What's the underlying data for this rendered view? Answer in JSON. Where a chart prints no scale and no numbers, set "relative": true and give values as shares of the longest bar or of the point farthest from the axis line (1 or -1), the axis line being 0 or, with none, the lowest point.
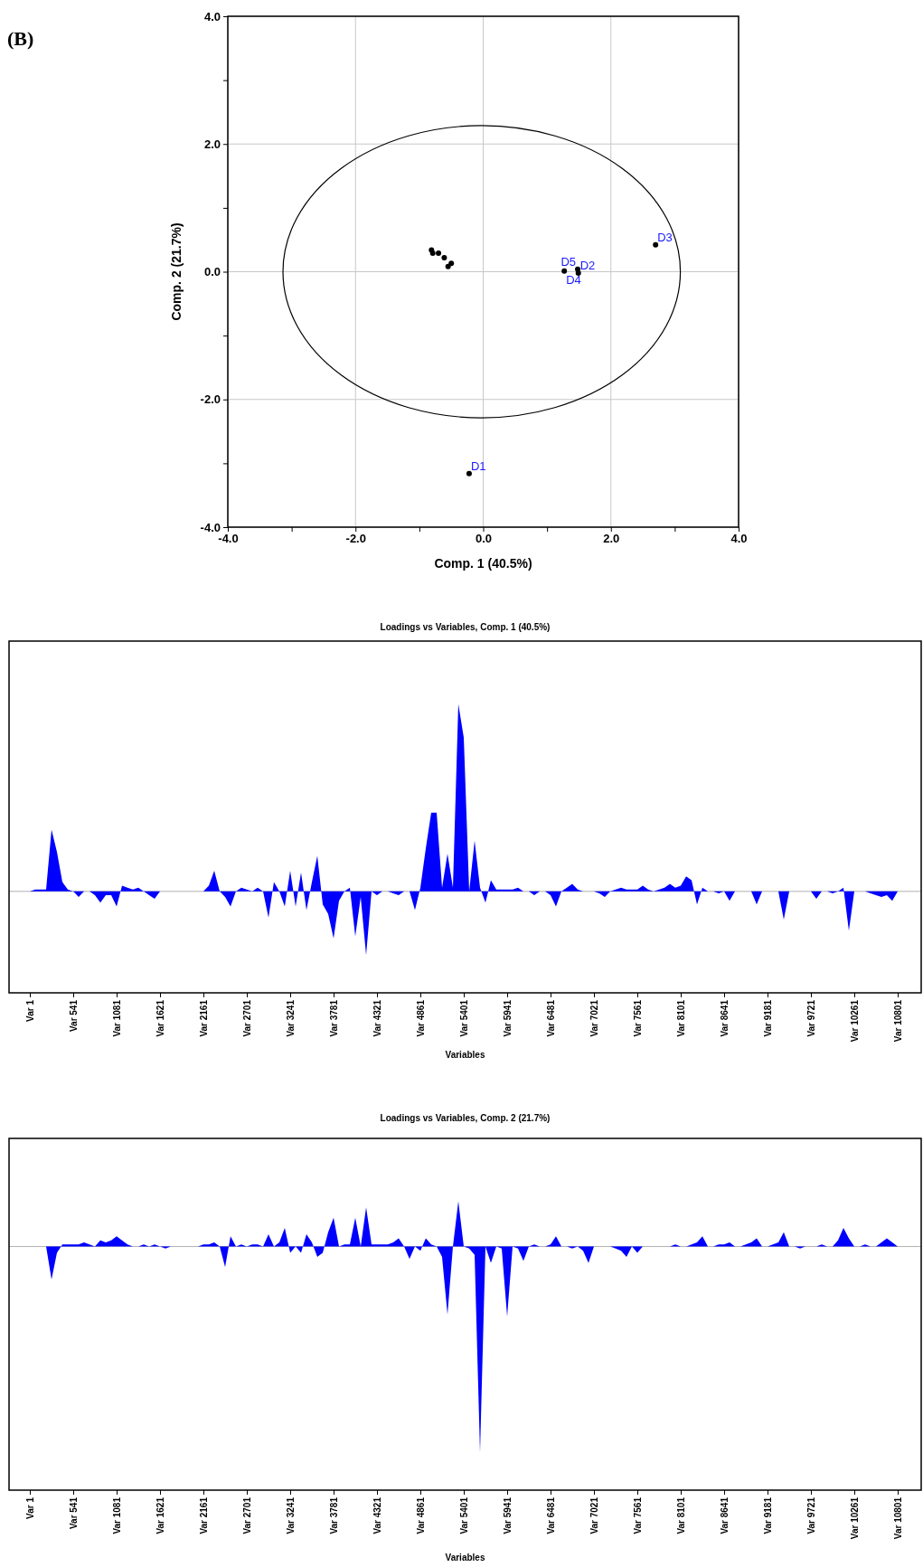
{
  "chart_data": [
    {
      "type": "scatter",
      "xlabel": "Comp. 1 (40.5%)",
      "ylabel": "Comp. 2 (21.7%)",
      "xlim": [
        -4,
        4
      ],
      "ylim": [
        -4,
        4
      ],
      "xticks": [
        {
          "value": -4,
          "label": "-4.0"
        },
        {
          "value": -3,
          "label": null
        },
        {
          "value": -2,
          "label": "-2.0"
        },
        {
          "value": -1,
          "label": null
        },
        {
          "value": 0,
          "label": "0.0"
        },
        {
          "value": 1,
          "label": null
        },
        {
          "value": 2,
          "label": "2.0"
        },
        {
          "value": 3,
          "label": null
        },
        {
          "value": 4,
          "label": "4.0"
        }
      ],
      "yticks": [
        {
          "value": -4,
          "label": "-4.0"
        },
        {
          "value": -3,
          "label": null
        },
        {
          "value": -2,
          "label": "-2.0"
        },
        {
          "value": -1,
          "label": null
        },
        {
          "value": 0,
          "label": "0.0"
        },
        {
          "value": 1,
          "label": null
        },
        {
          "value": 2,
          "label": "2.0"
        },
        {
          "value": 3,
          "label": null
        },
        {
          "value": 4,
          "label": "4.0"
        }
      ],
      "grid": true,
      "marker": "circle",
      "series": [
        {
          "color": "#000000",
          "x": [
            -0.81,
            -0.79,
            -0.7,
            -0.61,
            -0.55,
            -0.5
          ],
          "values": [
            0.34,
            0.29,
            0.29,
            0.22,
            0.08,
            0.13
          ]
        },
        {
          "color": "#000000",
          "x": [
            -0.22,
            1.49,
            2.7,
            1.27,
            1.48
          ],
          "values": [
            -3.16,
            -0.02,
            0.42,
            0.01,
            0.04
          ]
        }
      ],
      "annotations": [
        "(B)",
        {
          "text": "D1",
          "x": -0.22,
          "y": -3.16
        },
        {
          "text": "D2",
          "x": 1.49,
          "y": -0.02
        },
        {
          "text": "D3",
          "x": 2.7,
          "y": 0.42
        },
        {
          "text": "D4",
          "x": 1.27,
          "y": 0.01
        },
        {
          "text": "D5",
          "x": 1.48,
          "y": 0.04
        }
      ]
    },
    {
      "type": "area",
      "title": "Loadings vs Variables, Comp. 1 (40.5%)",
      "xlabel": "Variables",
      "relative": true,
      "categories": [
        "Var 1",
        null,
        null,
        null,
        null,
        null,
        null,
        null,
        "Var 541",
        null,
        null,
        null,
        null,
        null,
        null,
        null,
        "Var 1081",
        null,
        null,
        null,
        null,
        null,
        null,
        null,
        "Var 1621",
        null,
        null,
        null,
        null,
        null,
        null,
        null,
        "Var 2161",
        null,
        null,
        null,
        null,
        null,
        null,
        null,
        "Var 2701",
        null,
        null,
        null,
        null,
        null,
        null,
        null,
        "Var 3241",
        null,
        null,
        null,
        null,
        null,
        null,
        null,
        "Var 3781",
        null,
        null,
        null,
        null,
        null,
        null,
        null,
        "Var 4321",
        null,
        null,
        null,
        null,
        null,
        null,
        null,
        "Var 4861",
        null,
        null,
        null,
        null,
        null,
        null,
        null,
        "Var 5401",
        null,
        null,
        null,
        null,
        null,
        null,
        null,
        "Var 5941",
        null,
        null,
        null,
        null,
        null,
        null,
        null,
        "Var 6481",
        null,
        null,
        null,
        null,
        null,
        null,
        null,
        "Var 7021",
        null,
        null,
        null,
        null,
        null,
        null,
        null,
        "Var 7561",
        null,
        null,
        null,
        null,
        null,
        null,
        null,
        "Var 8101",
        null,
        null,
        null,
        null,
        null,
        null,
        null,
        "Var 8641",
        null,
        null,
        null,
        null,
        null,
        null,
        null,
        "Var 9181",
        null,
        null,
        null,
        null,
        null,
        null,
        null,
        "Var 9721",
        null,
        null,
        null,
        null,
        null,
        null,
        null,
        "Var 10261",
        null,
        null,
        null,
        null,
        null,
        null,
        null,
        "Var 10801"
      ],
      "series": [
        {
          "color": "#0000ff",
          "values": [
            0,
            0.01,
            0.01,
            0.01,
            0.33,
            0.21,
            0.05,
            0.01,
            0,
            -0.03,
            0,
            0,
            -0.02,
            -0.06,
            -0.02,
            -0.02,
            -0.08,
            0.03,
            0.02,
            0.01,
            0.02,
            0,
            -0.02,
            -0.04,
            0,
            0,
            0,
            0,
            0,
            0,
            0,
            0,
            0,
            0.03,
            0.11,
            0,
            -0.03,
            -0.08,
            0,
            0.02,
            0.01,
            0,
            0.02,
            0,
            -0.14,
            0.05,
            0,
            -0.08,
            0.11,
            -0.08,
            0.1,
            -0.1,
            0.05,
            0.19,
            -0.07,
            -0.12,
            -0.25,
            -0.05,
            0,
            0.02,
            -0.24,
            -0.03,
            -0.34,
            0,
            -0.02,
            0,
            0,
            -0.01,
            -0.02,
            0,
            0,
            -0.1,
            0.02,
            0.23,
            0.42,
            0.42,
            0.02,
            0.2,
            0.02,
            1,
            0.82,
            0,
            0.27,
            0.02,
            -0.06,
            0.06,
            0.01,
            0.01,
            0.01,
            0.01,
            0.02,
            0,
            0,
            -0.02,
            0,
            0,
            -0.02,
            -0.08,
            0,
            0.02,
            0.04,
            0.01,
            0,
            0,
            0,
            -0.01,
            -0.03,
            0,
            0.01,
            0.02,
            0.01,
            0.01,
            0.01,
            0.03,
            0.01,
            0,
            0.01,
            0.02,
            0.04,
            0.02,
            0.03,
            0.08,
            0.06,
            -0.07,
            0.02,
            0,
            0,
            -0.01,
            0,
            -0.05,
            0,
            0,
            0,
            0,
            -0.07,
            0,
            0,
            0,
            0,
            -0.15,
            0,
            0,
            0,
            0,
            0,
            -0.04,
            0,
            0,
            -0.01,
            0,
            0.02,
            -0.21,
            0,
            0,
            0,
            -0.01,
            -0.02,
            -0.03,
            -0.02,
            -0.05,
            0
          ]
        }
      ]
    },
    {
      "type": "area",
      "title": "Loadings vs Variables, Comp. 2 (21.7%)",
      "xlabel": "Variables",
      "relative": true,
      "categories": [
        "Var 1",
        null,
        null,
        null,
        null,
        null,
        null,
        null,
        "Var 541",
        null,
        null,
        null,
        null,
        null,
        null,
        null,
        "Var 1081",
        null,
        null,
        null,
        null,
        null,
        null,
        null,
        "Var 1621",
        null,
        null,
        null,
        null,
        null,
        null,
        null,
        "Var 2161",
        null,
        null,
        null,
        null,
        null,
        null,
        null,
        "Var 2701",
        null,
        null,
        null,
        null,
        null,
        null,
        null,
        "Var 3241",
        null,
        null,
        null,
        null,
        null,
        null,
        null,
        "Var 3781",
        null,
        null,
        null,
        null,
        null,
        null,
        null,
        "Var 4321",
        null,
        null,
        null,
        null,
        null,
        null,
        null,
        "Var 4861",
        null,
        null,
        null,
        null,
        null,
        null,
        null,
        "Var 5401",
        null,
        null,
        null,
        null,
        null,
        null,
        null,
        "Var 5941",
        null,
        null,
        null,
        null,
        null,
        null,
        null,
        "Var 6481",
        null,
        null,
        null,
        null,
        null,
        null,
        null,
        "Var 7021",
        null,
        null,
        null,
        null,
        null,
        null,
        null,
        "Var 7561",
        null,
        null,
        null,
        null,
        null,
        null,
        null,
        "Var 8101",
        null,
        null,
        null,
        null,
        null,
        null,
        null,
        "Var 8641",
        null,
        null,
        null,
        null,
        null,
        null,
        null,
        "Var 9181",
        null,
        null,
        null,
        null,
        null,
        null,
        null,
        "Var 9721",
        null,
        null,
        null,
        null,
        null,
        null,
        null,
        "Var 10261",
        null,
        null,
        null,
        null,
        null,
        null,
        null,
        "Var 10801"
      ],
      "series": [
        {
          "color": "#0000ff",
          "values": [
            0,
            0,
            0,
            0,
            -0.16,
            -0.03,
            0.01,
            0.01,
            0.01,
            0.01,
            0.02,
            0.01,
            0,
            0.03,
            0.02,
            0.03,
            0.05,
            0.03,
            0.01,
            0,
            0,
            0.01,
            0,
            0.01,
            0,
            -0.01,
            0,
            0,
            0,
            0,
            0,
            0,
            0.01,
            0.01,
            0.02,
            0,
            -0.1,
            0.05,
            0,
            0.01,
            0,
            0.01,
            0.01,
            0,
            0.06,
            0,
            0.02,
            0.09,
            -0.03,
            0,
            -0.03,
            0.06,
            0.02,
            -0.05,
            -0.03,
            0.07,
            0.14,
            0,
            0.01,
            0.01,
            0.14,
            0,
            0.19,
            0.01,
            0.01,
            0.01,
            0.01,
            0.02,
            0.04,
            0,
            -0.06,
            0,
            -0.02,
            0.04,
            0.01,
            0,
            -0.05,
            -0.33,
            0,
            0.22,
            0,
            -0.01,
            -0.04,
            -1,
            0,
            -0.08,
            0,
            -0.01,
            -0.34,
            0,
            -0.01,
            -0.07,
            0,
            0.01,
            0,
            0,
            0.01,
            0.05,
            0,
            0,
            -0.01,
            0,
            -0.02,
            -0.08,
            0,
            0,
            0,
            0,
            -0.01,
            -0.02,
            -0.05,
            0,
            -0.03,
            0,
            0,
            0,
            0,
            0,
            0,
            0.01,
            0,
            0,
            0.01,
            0.02,
            0.05,
            0,
            0,
            0.01,
            0.01,
            0.02,
            0,
            0,
            0.01,
            0.02,
            0.04,
            0,
            0,
            0.01,
            0.02,
            0.07,
            0,
            0,
            -0.01,
            0,
            0,
            0,
            0.01,
            0,
            0,
            0.03,
            0.09,
            0.04,
            0,
            0,
            0.01,
            0,
            0,
            0.02,
            0.04,
            0.02,
            0
          ]
        }
      ]
    }
  ]
}
